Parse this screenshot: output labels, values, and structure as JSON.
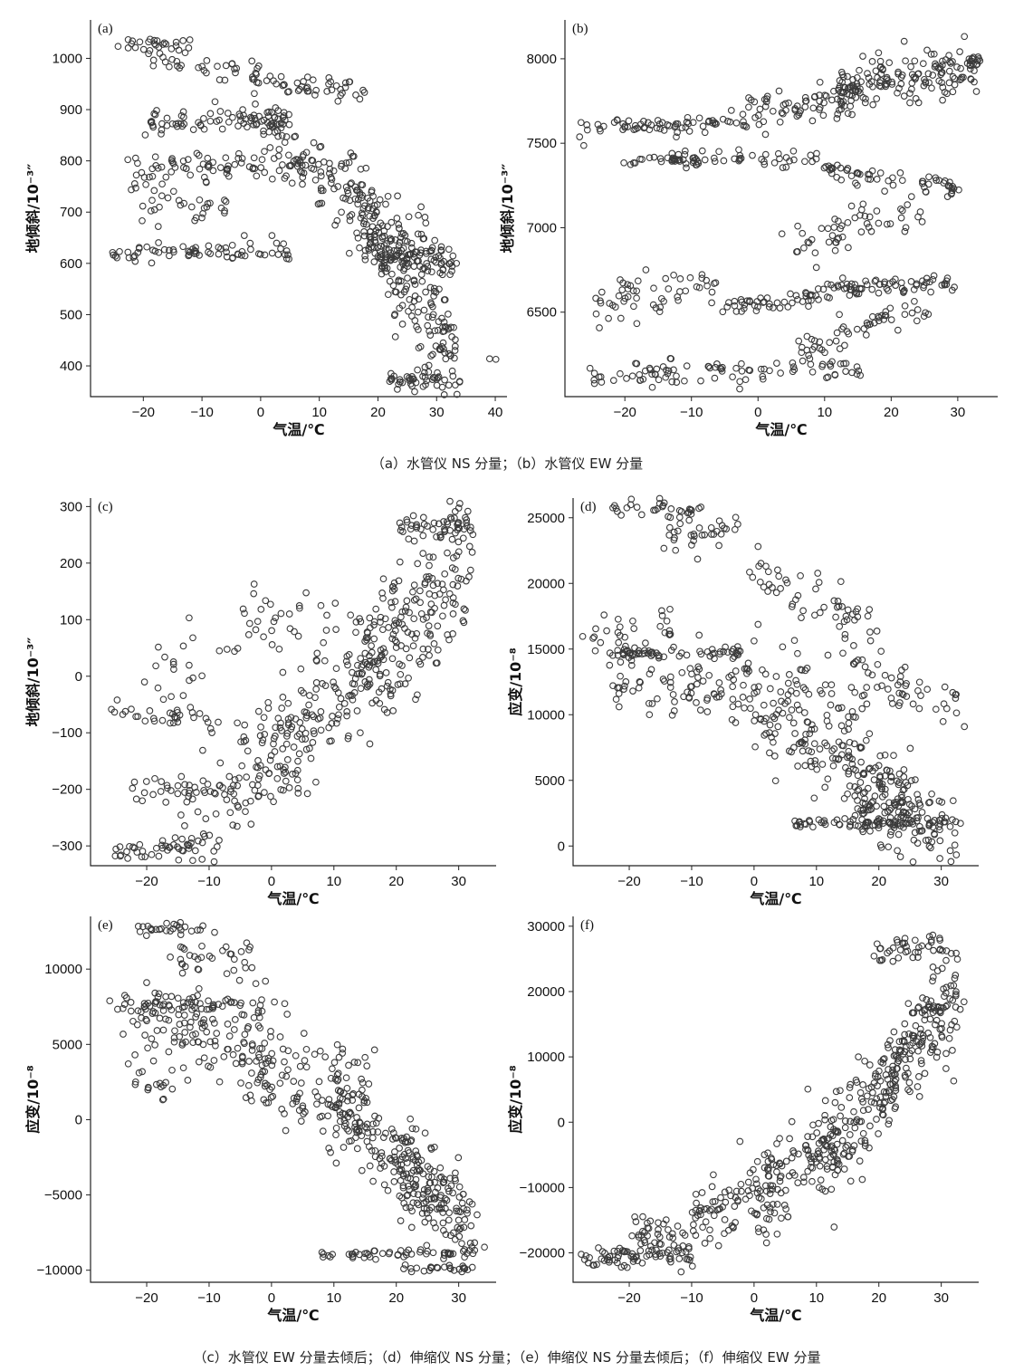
{
  "captions": {
    "top": "（a）水管仪 NS 分量；（b）水管仪 EW 分量",
    "bottom": "（c）水管仪 EW 分量去倾后；（d）伸缩仪 NS 分量；（e）伸缩仪 NS 分量去倾后；（f）伸缩仪 EW 分量"
  },
  "chart_data": [
    {
      "id": "a",
      "type": "scatter",
      "panel_label": "(a)",
      "xlabel": "气温/℃",
      "ylabel": "地倾斜/10⁻³″",
      "xlim": [
        -29,
        42
      ],
      "ylim": [
        340,
        1075
      ],
      "xticks": [
        -20,
        -10,
        0,
        10,
        20,
        30,
        40
      ],
      "yticks": [
        400,
        500,
        600,
        700,
        800,
        900,
        1000
      ],
      "clusters": [
        {
          "x": [
            -26,
            -10
          ],
          "y": [
            1025,
            1030
          ],
          "n": 25,
          "s": 8
        },
        {
          "x": [
            -20,
            0
          ],
          "y": [
            1010,
            970
          ],
          "n": 35,
          "s": 14
        },
        {
          "x": [
            -2,
            18
          ],
          "y": [
            960,
            930
          ],
          "n": 45,
          "s": 12
        },
        {
          "x": [
            -19,
            5
          ],
          "y": [
            875,
            880
          ],
          "n": 80,
          "s": 10
        },
        {
          "x": [
            -22,
            10
          ],
          "y": [
            790,
            790
          ],
          "n": 85,
          "s": 12
        },
        {
          "x": [
            -26,
            5
          ],
          "y": [
            620,
            625
          ],
          "n": 70,
          "s": 10
        },
        {
          "x": [
            -22,
            -5
          ],
          "y": [
            735,
            700
          ],
          "n": 35,
          "s": 20
        },
        {
          "x": [
            0,
            30
          ],
          "y": [
            860,
            610
          ],
          "n": 150,
          "s": 45
        },
        {
          "x": [
            15,
            33
          ],
          "y": [
            720,
            420
          ],
          "n": 170,
          "s": 45
        },
        {
          "x": [
            20,
            33
          ],
          "y": [
            620,
            600
          ],
          "n": 70,
          "s": 18
        },
        {
          "x": [
            22,
            34
          ],
          "y": [
            375,
            368
          ],
          "n": 45,
          "s": 10
        },
        {
          "x": [
            39,
            40
          ],
          "y": [
            412,
            412
          ],
          "n": 2,
          "s": 2
        }
      ]
    },
    {
      "id": "b",
      "type": "scatter",
      "panel_label": "(b)",
      "xlabel": "气温/℃",
      "ylabel": "地倾斜/10⁻³″",
      "xlim": [
        -29,
        36
      ],
      "ylim": [
        6000,
        8230
      ],
      "xticks": [
        -20,
        -10,
        0,
        10,
        20,
        30
      ],
      "yticks": [
        6500,
        7000,
        7500,
        8000
      ],
      "clusters": [
        {
          "x": [
            -26,
            -5
          ],
          "y": [
            7580,
            7620
          ],
          "n": 60,
          "s": 25
        },
        {
          "x": [
            -5,
            15
          ],
          "y": [
            7640,
            7780
          ],
          "n": 80,
          "s": 50
        },
        {
          "x": [
            12,
            33
          ],
          "y": [
            7820,
            7950
          ],
          "n": 160,
          "s": 65
        },
        {
          "x": [
            -20,
            10
          ],
          "y": [
            7390,
            7420
          ],
          "n": 70,
          "s": 25
        },
        {
          "x": [
            10,
            30
          ],
          "y": [
            7350,
            7220
          ],
          "n": 60,
          "s": 30
        },
        {
          "x": [
            5,
            25
          ],
          "y": [
            6850,
            7150
          ],
          "n": 55,
          "s": 70
        },
        {
          "x": [
            -25,
            -5
          ],
          "y": [
            6560,
            6650
          ],
          "n": 55,
          "s": 60
        },
        {
          "x": [
            -5,
            10
          ],
          "y": [
            6540,
            6600
          ],
          "n": 45,
          "s": 30
        },
        {
          "x": [
            10,
            30
          ],
          "y": [
            6640,
            6680
          ],
          "n": 70,
          "s": 25
        },
        {
          "x": [
            5,
            25
          ],
          "y": [
            6250,
            6550
          ],
          "n": 55,
          "s": 50
        },
        {
          "x": [
            -26,
            15
          ],
          "y": [
            6110,
            6180
          ],
          "n": 90,
          "s": 35
        }
      ]
    },
    {
      "id": "c",
      "type": "scatter",
      "panel_label": "(c)",
      "xlabel": "气温/℃",
      "ylabel": "地倾斜/10⁻³″",
      "xlim": [
        -29,
        36
      ],
      "ylim": [
        -335,
        315
      ],
      "xticks": [
        -20,
        -10,
        0,
        10,
        20,
        30
      ],
      "yticks": [
        -300,
        -200,
        -100,
        0,
        100,
        200,
        300
      ],
      "clusters": [
        {
          "x": [
            -25,
            -8
          ],
          "y": [
            -305,
            -300
          ],
          "n": 45,
          "s": 12
        },
        {
          "x": [
            -22,
            -5
          ],
          "y": [
            -200,
            -215
          ],
          "n": 35,
          "s": 15
        },
        {
          "x": [
            -25,
            -8
          ],
          "y": [
            -70,
            -75
          ],
          "n": 30,
          "s": 10
        },
        {
          "x": [
            -20,
            -5
          ],
          "y": [
            -10,
            40
          ],
          "n": 25,
          "s": 40
        },
        {
          "x": [
            -15,
            5
          ],
          "y": [
            -270,
            -130
          ],
          "n": 70,
          "s": 45
        },
        {
          "x": [
            -5,
            20
          ],
          "y": [
            -170,
            60
          ],
          "n": 160,
          "s": 55
        },
        {
          "x": [
            -5,
            10
          ],
          "y": [
            90,
            110
          ],
          "n": 30,
          "s": 30
        },
        {
          "x": [
            15,
            32
          ],
          "y": [
            20,
            200
          ],
          "n": 180,
          "s": 65
        },
        {
          "x": [
            20,
            32
          ],
          "y": [
            265,
            270
          ],
          "n": 45,
          "s": 10
        }
      ]
    },
    {
      "id": "d",
      "type": "scatter",
      "panel_label": "(d)",
      "xlabel": "气温/℃",
      "ylabel": "应变/10⁻⁸",
      "xlim": [
        -29,
        36
      ],
      "ylim": [
        -1500,
        26500
      ],
      "xticks": [
        -20,
        -10,
        0,
        10,
        20,
        30
      ],
      "yticks": [
        0,
        5000,
        10000,
        15000,
        20000,
        25000
      ],
      "clusters": [
        {
          "x": [
            -23,
            -8
          ],
          "y": [
            25800,
            25500
          ],
          "n": 30,
          "s": 300
        },
        {
          "x": [
            -15,
            -2
          ],
          "y": [
            23500,
            24500
          ],
          "n": 35,
          "s": 900
        },
        {
          "x": [
            0,
            20
          ],
          "y": [
            21000,
            16500
          ],
          "n": 55,
          "s": 900
        },
        {
          "x": [
            15,
            33
          ],
          "y": [
            14000,
            10800
          ],
          "n": 50,
          "s": 900
        },
        {
          "x": [
            -28,
            -12
          ],
          "y": [
            15800,
            16800
          ],
          "n": 25,
          "s": 500
        },
        {
          "x": [
            -23,
            -2
          ],
          "y": [
            14700,
            14800
          ],
          "n": 60,
          "s": 200
        },
        {
          "x": [
            -23,
            0
          ],
          "y": [
            12500,
            11500
          ],
          "n": 90,
          "s": 1500
        },
        {
          "x": [
            0,
            18
          ],
          "y": [
            13000,
            9000
          ],
          "n": 60,
          "s": 1800
        },
        {
          "x": [
            0,
            25
          ],
          "y": [
            10000,
            3500
          ],
          "n": 150,
          "s": 1700
        },
        {
          "x": [
            15,
            32
          ],
          "y": [
            4000,
            1000
          ],
          "n": 130,
          "s": 1300
        },
        {
          "x": [
            6,
            33
          ],
          "y": [
            1700,
            1800
          ],
          "n": 60,
          "s": 150
        }
      ]
    },
    {
      "id": "e",
      "type": "scatter",
      "panel_label": "(e)",
      "xlabel": "气温/℃",
      "ylabel": "应变/10⁻⁸",
      "xlim": [
        -29,
        36
      ],
      "ylim": [
        -10800,
        13500
      ],
      "xticks": [
        -20,
        -10,
        0,
        10,
        20,
        30
      ],
      "yticks": [
        -10000,
        -5000,
        0,
        5000,
        10000
      ],
      "clusters": [
        {
          "x": [
            -22,
            -10
          ],
          "y": [
            12700,
            12800
          ],
          "n": 25,
          "s": 250
        },
        {
          "x": [
            -15,
            -2
          ],
          "y": [
            10000,
            11500
          ],
          "n": 35,
          "s": 900
        },
        {
          "x": [
            -26,
            -5
          ],
          "y": [
            7700,
            7800
          ],
          "n": 50,
          "s": 300
        },
        {
          "x": [
            -23,
            0
          ],
          "y": [
            6500,
            4500
          ],
          "n": 110,
          "s": 1500
        },
        {
          "x": [
            -22,
            -15
          ],
          "y": [
            2500,
            2000
          ],
          "n": 15,
          "s": 400
        },
        {
          "x": [
            -5,
            15
          ],
          "y": [
            5000,
            0
          ],
          "n": 130,
          "s": 1900
        },
        {
          "x": [
            10,
            25
          ],
          "y": [
            2000,
            -5000
          ],
          "n": 130,
          "s": 1900
        },
        {
          "x": [
            20,
            33
          ],
          "y": [
            -3000,
            -7500
          ],
          "n": 140,
          "s": 1600
        },
        {
          "x": [
            8,
            32
          ],
          "y": [
            -9000,
            -8800
          ],
          "n": 50,
          "s": 150
        },
        {
          "x": [
            20,
            32
          ],
          "y": [
            -9800,
            -9900
          ],
          "n": 25,
          "s": 100
        }
      ]
    },
    {
      "id": "f",
      "type": "scatter",
      "panel_label": "(f)",
      "xlabel": "气温/℃",
      "ylabel": "应变/10⁻⁸",
      "xlim": [
        -29,
        36
      ],
      "ylim": [
        -24500,
        31500
      ],
      "xticks": [
        -20,
        -10,
        0,
        10,
        20,
        30
      ],
      "yticks": [
        -20000,
        -10000,
        0,
        10000,
        20000,
        30000
      ],
      "clusters": [
        {
          "x": [
            -27,
            -10
          ],
          "y": [
            -21000,
            -20000
          ],
          "n": 80,
          "s": 1000
        },
        {
          "x": [
            -20,
            -5
          ],
          "y": [
            -17000,
            -14000
          ],
          "n": 40,
          "s": 2200
        },
        {
          "x": [
            -10,
            5
          ],
          "y": [
            -15000,
            -9000
          ],
          "n": 70,
          "s": 2800
        },
        {
          "x": [
            0,
            15
          ],
          "y": [
            -12000,
            -2000
          ],
          "n": 110,
          "s": 3200
        },
        {
          "x": [
            10,
            25
          ],
          "y": [
            -6000,
            10000
          ],
          "n": 130,
          "s": 4000
        },
        {
          "x": [
            20,
            33
          ],
          "y": [
            5000,
            20000
          ],
          "n": 130,
          "s": 4500
        },
        {
          "x": [
            20,
            30
          ],
          "y": [
            26000,
            28000
          ],
          "n": 40,
          "s": 1200
        },
        {
          "x": [
            25,
            32
          ],
          "y": [
            17000,
            17500
          ],
          "n": 20,
          "s": 300
        }
      ]
    }
  ]
}
